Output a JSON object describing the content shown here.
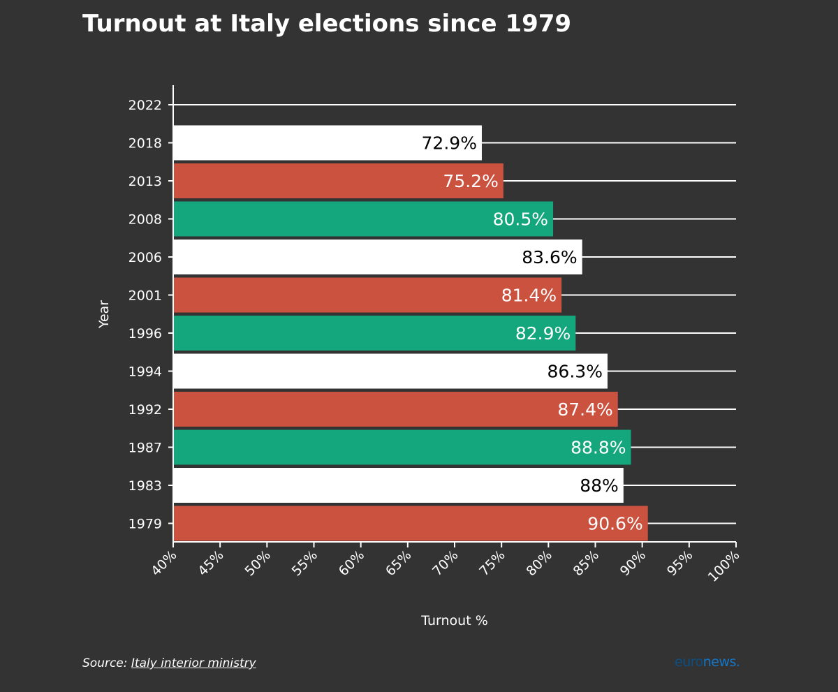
{
  "chart_data": {
    "type": "bar",
    "orientation": "horizontal",
    "title": "Turnout at Italy elections since 1979",
    "xlabel": "Turnout %",
    "ylabel": "Year",
    "xlim": [
      40,
      100
    ],
    "x_ticks": [
      "40%",
      "45%",
      "50%",
      "55%",
      "60%",
      "65%",
      "70%",
      "75%",
      "80%",
      "85%",
      "90%",
      "95%",
      "100%"
    ],
    "grid": true,
    "categories": [
      "2022",
      "2018",
      "2013",
      "2008",
      "2006",
      "2001",
      "1996",
      "1994",
      "1992",
      "1987",
      "1983",
      "1979"
    ],
    "values": [
      null,
      72.9,
      75.2,
      80.5,
      83.6,
      81.4,
      82.9,
      86.3,
      87.4,
      88.8,
      88,
      90.6
    ],
    "value_labels": [
      "",
      "72.9%",
      "75.2%",
      "80.5%",
      "83.6%",
      "81.4%",
      "82.9%",
      "86.3%",
      "87.4%",
      "88.8%",
      "88%",
      "90.6%"
    ],
    "bar_colors": [
      "#ffffff",
      "#ffffff",
      "#cc5240",
      "#14a67c",
      "#ffffff",
      "#cc5240",
      "#14a67c",
      "#ffffff",
      "#cc5240",
      "#14a67c",
      "#ffffff",
      "#cc5240"
    ],
    "label_colors": [
      "#000000",
      "#000000",
      "#ffffff",
      "#ffffff",
      "#000000",
      "#ffffff",
      "#ffffff",
      "#000000",
      "#ffffff",
      "#ffffff",
      "#000000",
      "#ffffff"
    ]
  },
  "source": {
    "prefix": "Source: ",
    "link_text": "Italy interior ministry"
  },
  "brand": {
    "part1": "euro",
    "part2": "news."
  },
  "colors": {
    "background": "#333333",
    "axis": "#ffffff",
    "grid": "#ffffff"
  }
}
